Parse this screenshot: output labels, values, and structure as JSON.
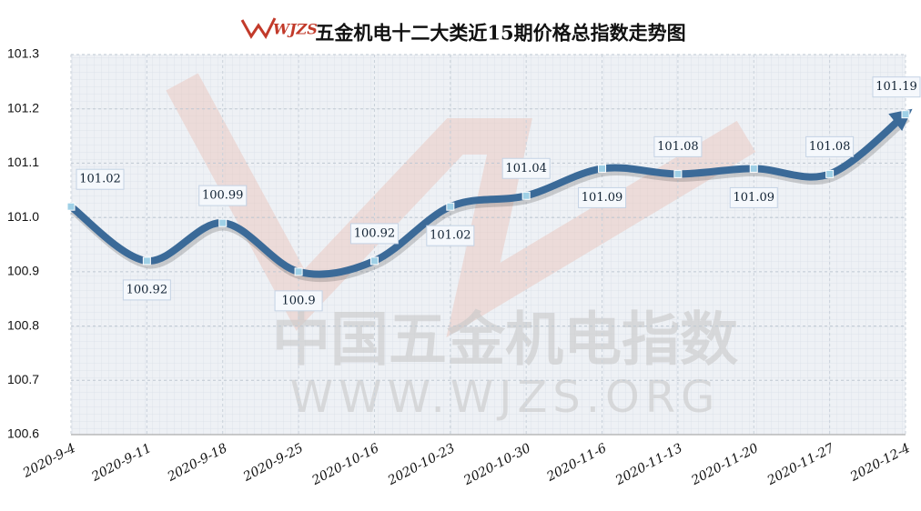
{
  "chart_data": {
    "type": "line",
    "title": "五金机电十二大类近15期价格总指数走势图",
    "logo": "WJZS",
    "watermark": [
      "中国五金机电指数",
      "WWW.WJZS.ORG"
    ],
    "categories": [
      "2020-9-4",
      "2020-9-11",
      "2020-9-18",
      "2020-9-25",
      "2020-10-16",
      "2020-10-23",
      "2020-10-30",
      "2020-11-6",
      "2020-11-13",
      "2020-11-20",
      "2020-11-27",
      "2020-12-4"
    ],
    "series": [
      {
        "name": "价格总指数",
        "color": "#3b6a98",
        "values": [
          101.02,
          100.92,
          100.99,
          100.9,
          100.92,
          101.02,
          101.04,
          101.09,
          101.08,
          101.09,
          101.08,
          101.19
        ]
      }
    ],
    "ylim": [
      100.6,
      101.3
    ],
    "yticks": [
      100.6,
      100.7,
      100.8,
      100.9,
      {
        "value": 101,
        "label": "101.0"
      },
      101.1,
      101.2,
      101.3
    ],
    "grid": true
  }
}
